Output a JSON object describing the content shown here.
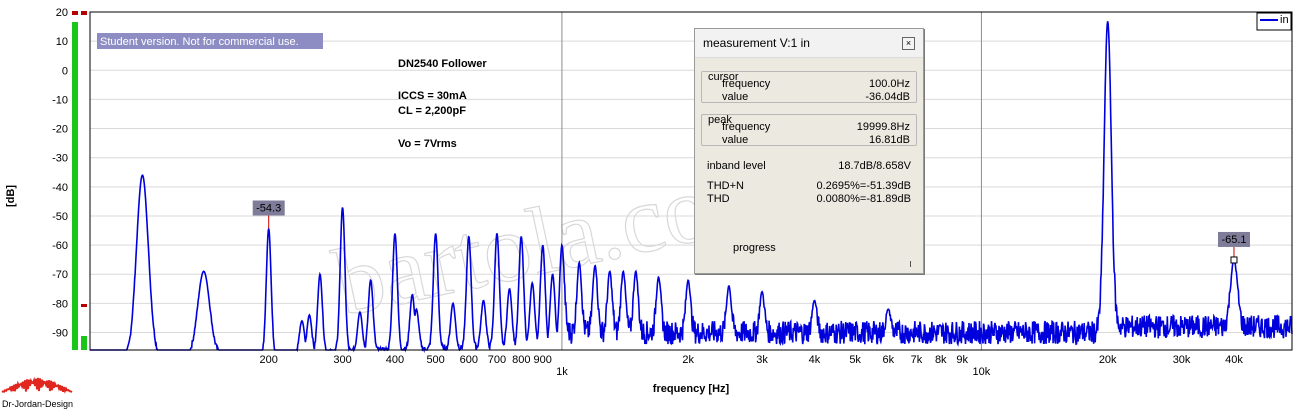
{
  "chart_data": {
    "type": "line",
    "xscale": "log",
    "xlabel": "frequency [Hz]",
    "ylabel": "[dB]",
    "xlim": [
      75,
      55000
    ],
    "ylim": [
      -96,
      20
    ],
    "y_ticks": [
      "20",
      "10",
      "0",
      "-10",
      "-20",
      "-30",
      "-40",
      "-50",
      "-60",
      "-70",
      "-80",
      "-90"
    ],
    "x_ticks": [
      "200",
      "300",
      "400",
      "500",
      "600",
      "700",
      "800",
      "900",
      "1k",
      "2k",
      "3k",
      "4k",
      "5k",
      "6k",
      "7k",
      "8k",
      "9k",
      "10k",
      "20k",
      "30k",
      "40k"
    ],
    "legend": "in",
    "legend_position": "top-right",
    "grid": true,
    "series": [
      {
        "name": "in",
        "color": "#0000dd",
        "peaks": [
          {
            "f": 100,
            "db": -36.0
          },
          {
            "f": 140,
            "db": -69
          },
          {
            "f": 200,
            "db": -54.3
          },
          {
            "f": 240,
            "db": -86
          },
          {
            "f": 250,
            "db": -84
          },
          {
            "f": 265,
            "db": -70
          },
          {
            "f": 300,
            "db": -47
          },
          {
            "f": 330,
            "db": -83
          },
          {
            "f": 350,
            "db": -72
          },
          {
            "f": 400,
            "db": -56
          },
          {
            "f": 440,
            "db": -77
          },
          {
            "f": 450,
            "db": -82
          },
          {
            "f": 500,
            "db": -56
          },
          {
            "f": 550,
            "db": -80
          },
          {
            "f": 600,
            "db": -57
          },
          {
            "f": 650,
            "db": -79
          },
          {
            "f": 700,
            "db": -56
          },
          {
            "f": 750,
            "db": -75
          },
          {
            "f": 800,
            "db": -57
          },
          {
            "f": 850,
            "db": -73
          },
          {
            "f": 900,
            "db": -60
          },
          {
            "f": 950,
            "db": -70
          },
          {
            "f": 1000,
            "db": -60
          },
          {
            "f": 1100,
            "db": -66
          },
          {
            "f": 1200,
            "db": -67
          },
          {
            "f": 1300,
            "db": -69
          },
          {
            "f": 1400,
            "db": -69
          },
          {
            "f": 1500,
            "db": -69
          },
          {
            "f": 1700,
            "db": -71
          },
          {
            "f": 2000,
            "db": -72
          },
          {
            "f": 2500,
            "db": -74
          },
          {
            "f": 3000,
            "db": -76
          },
          {
            "f": 4000,
            "db": -79
          },
          {
            "f": 6000,
            "db": -82
          },
          {
            "f": 20000,
            "db": 16.81
          },
          {
            "f": 40000,
            "db": -65.1
          }
        ],
        "noise_floor_db": -88
      }
    ],
    "annotations": [
      {
        "text": "-54.3",
        "f": 200,
        "db": -54.3
      },
      {
        "text": "-65.1",
        "f": 40000,
        "db": -65.1
      }
    ]
  },
  "watermark": "Student version. Not for commercial use.",
  "notes": {
    "line1": "DN2540 Follower",
    "line2": "ICCS = 30mA",
    "line3": "CL = 2,200pF",
    "line4": "Vo = 7Vrms"
  },
  "logo_text": "Dr-Jordan-Design",
  "bg_watermark": "bartola.co.uk",
  "measurement": {
    "title": "measurement V:1 in",
    "cursor_label": "cursor",
    "cursor_freq_label": "frequency",
    "cursor_freq": "100.0Hz",
    "cursor_value_label": "value",
    "cursor_value": "-36.04dB",
    "peak_label": "peak",
    "peak_freq_label": "frequency",
    "peak_freq": "19999.8Hz",
    "peak_value_label": "value",
    "peak_value": "16.81dB",
    "inband_label": "inband level",
    "inband_value": "18.7dB/8.658V",
    "thdn_label": "THD+N",
    "thdn_value": "0.2695%=-51.39dB",
    "thd_label": "THD",
    "thd_value": "0.0080%=-81.89dB",
    "progress_label": "progress"
  }
}
